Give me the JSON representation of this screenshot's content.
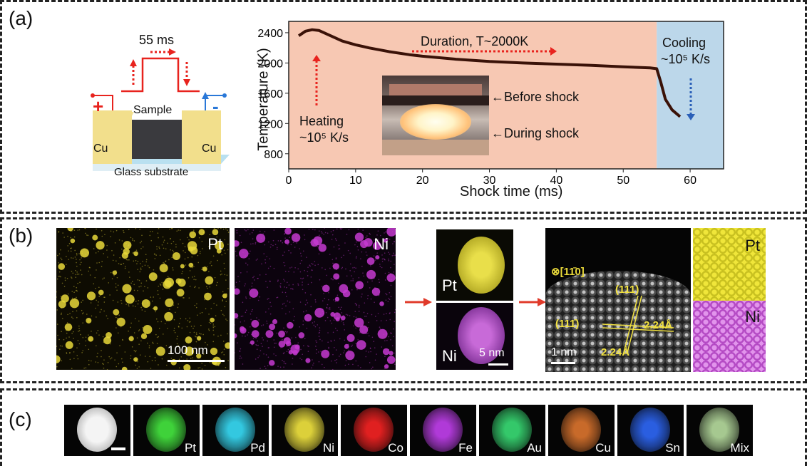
{
  "panel_a": {
    "label": "(a)",
    "schematic": {
      "pulse_width": "55 ms",
      "plus": "+",
      "minus": "-",
      "sample": "Sample",
      "cu_left": "Cu",
      "cu_right": "Cu",
      "substrate": "Glass substrate"
    },
    "annotations": {
      "duration": "Duration, T~2000K",
      "heating_line1": "Heating",
      "heating_line2": "~10⁵ K/s",
      "cooling_line1": "Cooling",
      "cooling_line2": "~10⁵ K/s",
      "before_shock": "←Before shock",
      "during_shock": "←During shock"
    },
    "colors": {
      "heating_bg": "#f7c8b3",
      "cooling_bg": "#bcd7ea",
      "curve": "#3a1208",
      "red_arrow": "#e8231e",
      "blue_arrow": "#2a5fb8"
    }
  },
  "chart_data": {
    "type": "line",
    "title": "",
    "xlabel": "Shock time (ms)",
    "ylabel": "Temperature (K)",
    "xlim": [
      0,
      65
    ],
    "ylim": [
      600,
      2550
    ],
    "xticks": [
      0,
      10,
      20,
      30,
      40,
      50,
      60
    ],
    "yticks": [
      800,
      1200,
      1600,
      2000,
      2400
    ],
    "series": [
      {
        "x": [
          1.5,
          2.5,
          3.5,
          4.5,
          6,
          8,
          10,
          12,
          15,
          18,
          20,
          25,
          30,
          35,
          40,
          45,
          50,
          54,
          55,
          55.6,
          56.3,
          57.3,
          58.5
        ],
        "y": [
          2360,
          2420,
          2440,
          2430,
          2370,
          2290,
          2240,
          2200,
          2150,
          2110,
          2090,
          2050,
          2020,
          2000,
          1985,
          1970,
          1950,
          1935,
          1925,
          1750,
          1520,
          1380,
          1290
        ]
      }
    ],
    "regions": [
      {
        "from": 0,
        "to": 55,
        "label": "heating/duration"
      },
      {
        "from": 55,
        "to": 65,
        "label": "cooling"
      }
    ],
    "grid": false
  },
  "panel_b": {
    "label": "(b)",
    "map_pt": "Pt",
    "map_ni": "Ni",
    "scale_100": "100 nm",
    "particle_pt": "Pt",
    "particle_ni": "Ni",
    "scale_5": "5 nm",
    "zone_axis": "⊗[11̄0]",
    "plane_111": "(111)",
    "plane_11m1": "(111̄)",
    "d1": "2.24Å",
    "d2": "2.24Å",
    "scale_1": "1 nm",
    "strip_pt": "Pt",
    "strip_ni": "Ni",
    "colors": {
      "pt": "#e8d83a",
      "ni": "#c63ad0",
      "arrow": "#e03a2a"
    }
  },
  "panel_c": {
    "label": "(c)",
    "tiles": [
      {
        "label": "",
        "color": "#ffffff"
      },
      {
        "label": "Pt",
        "color": "#3fd23a"
      },
      {
        "label": "Pd",
        "color": "#33c8e0"
      },
      {
        "label": "Ni",
        "color": "#dcd03a"
      },
      {
        "label": "Co",
        "color": "#e02020"
      },
      {
        "label": "Fe",
        "color": "#b03ad8"
      },
      {
        "label": "Au",
        "color": "#34c86a"
      },
      {
        "label": "Cu",
        "color": "#c86a2a"
      },
      {
        "label": "Sn",
        "color": "#2a5ee0"
      },
      {
        "label": "Mix",
        "color": "#a6c890"
      }
    ]
  }
}
